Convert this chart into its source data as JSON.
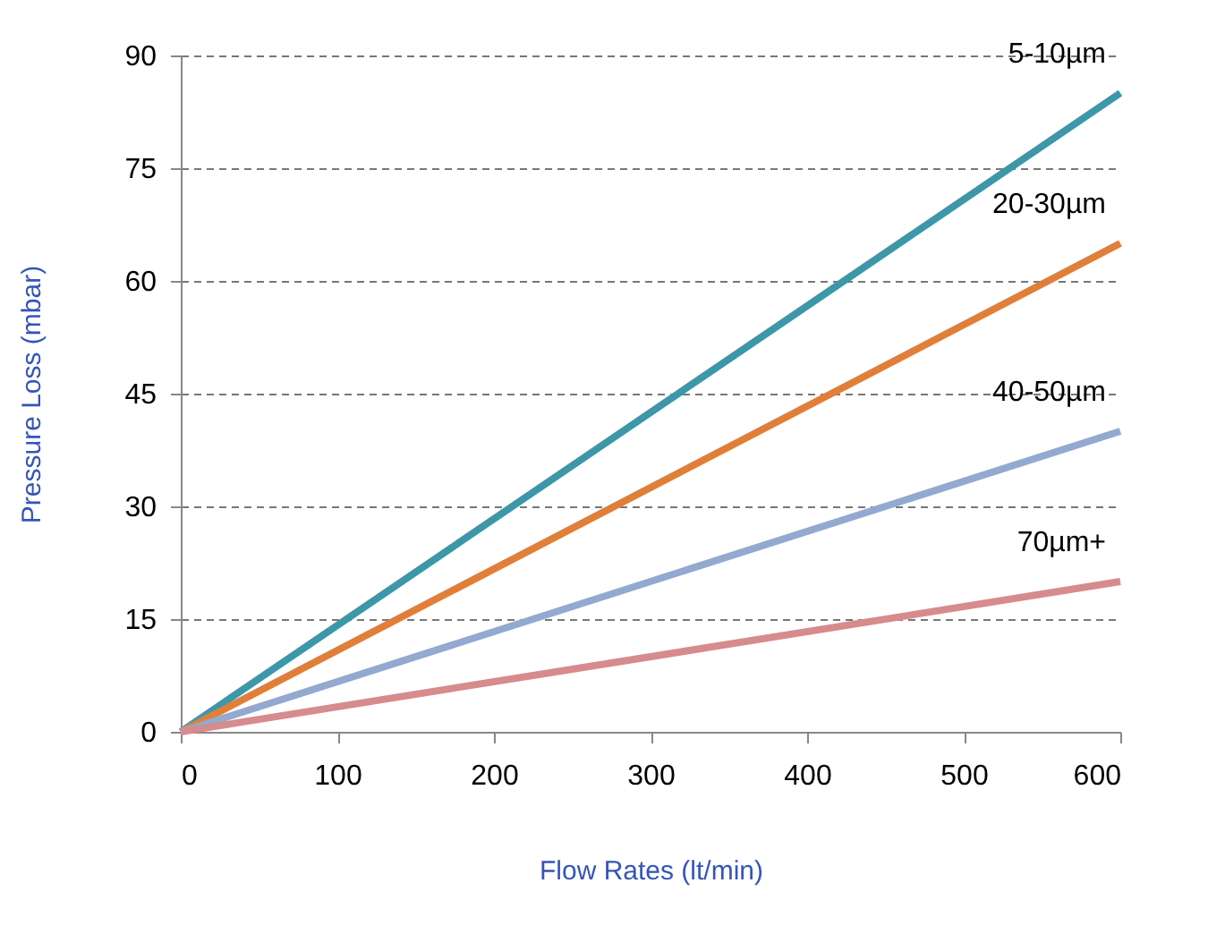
{
  "chart_data": {
    "type": "line",
    "xlabel": "Flow Rates (lt/min)",
    "ylabel": "Pressure Loss (mbar)",
    "x": [
      0,
      600
    ],
    "series": [
      {
        "name": "5-10µm",
        "color": "#3d97a8",
        "values": [
          0,
          85
        ]
      },
      {
        "name": "20-30µm",
        "color": "#e07f3a",
        "values": [
          0,
          65
        ]
      },
      {
        "name": "40-50µm",
        "color": "#93a9cf",
        "values": [
          0,
          40
        ]
      },
      {
        "name": "70µm+",
        "color": "#d68b8d",
        "values": [
          0,
          20
        ]
      }
    ],
    "xlim": [
      0,
      600
    ],
    "xticks": [
      0,
      100,
      200,
      300,
      400,
      500,
      600
    ],
    "ylim": [
      0,
      90
    ],
    "yticks": [
      0,
      15,
      30,
      45,
      60,
      75,
      90
    ],
    "grid": "y",
    "legend": false,
    "marker": "none",
    "line_style": "solid"
  }
}
